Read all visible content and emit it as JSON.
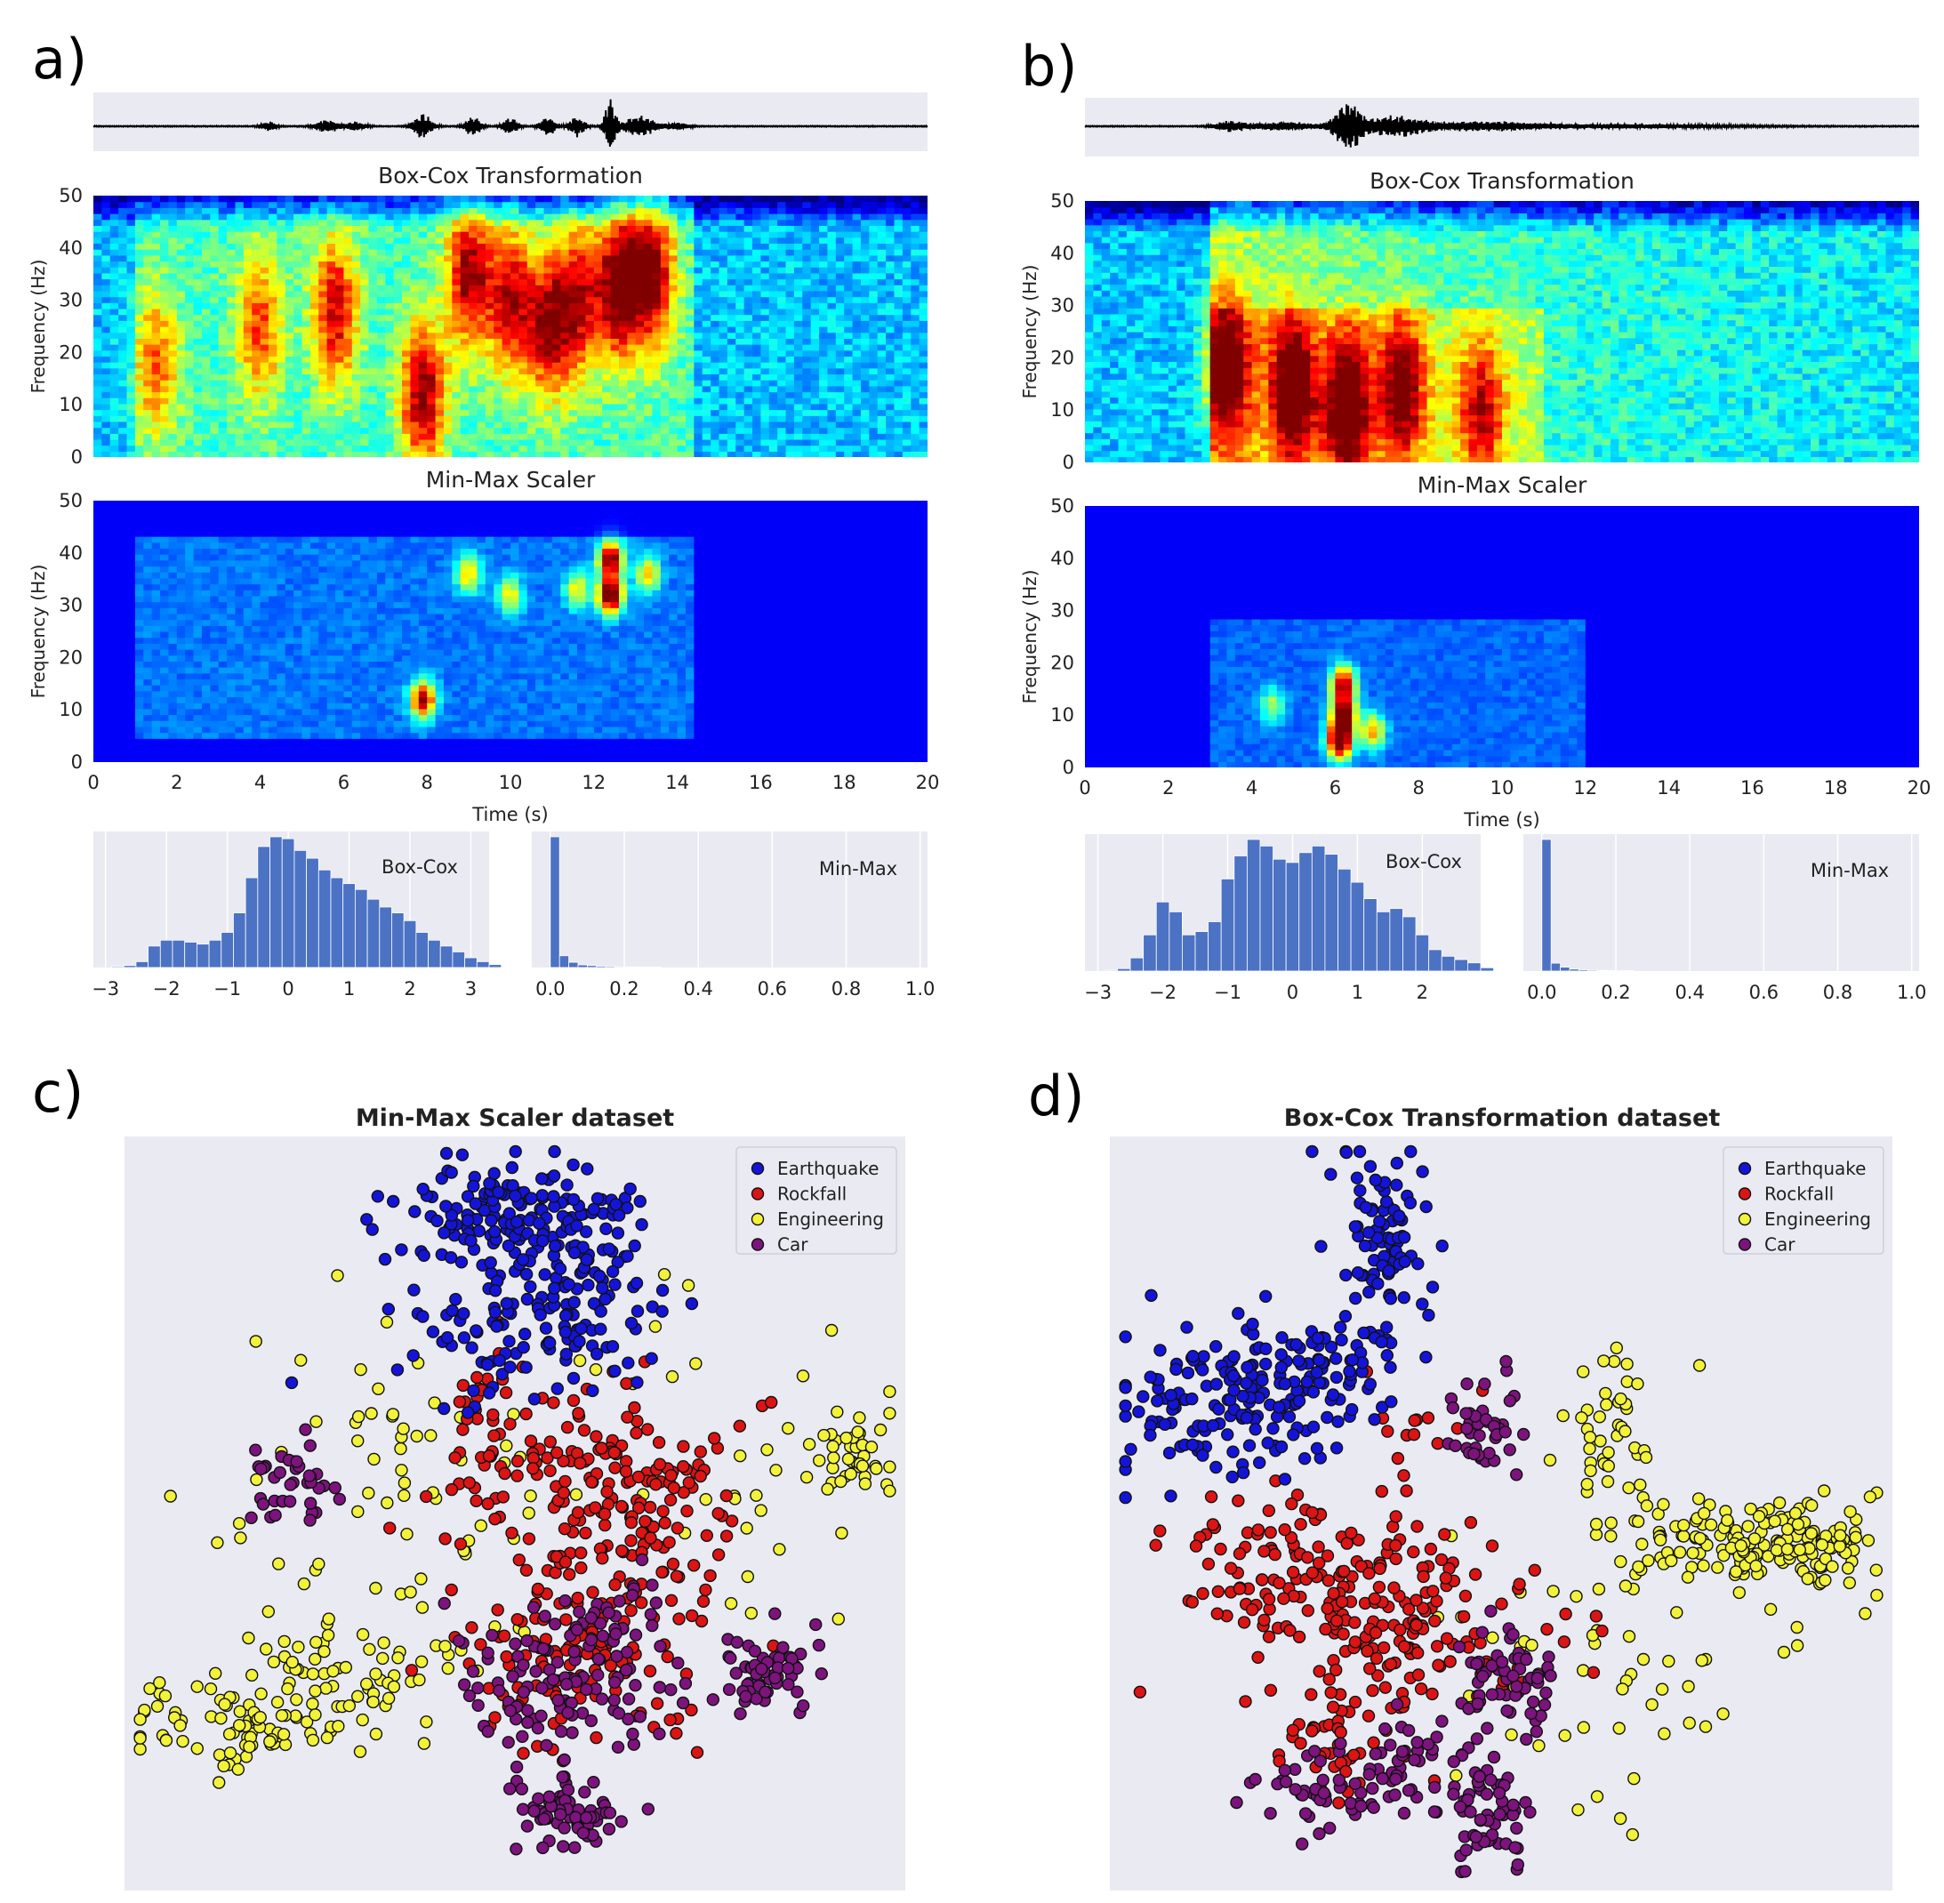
{
  "panels": [
    {
      "letter": "a)",
      "spec_titles": [
        "Box-Cox Transformation",
        "Min-Max Scaler"
      ],
      "ylabel": "Frequency (Hz)",
      "xlabel": "Time (s)",
      "hist_labels": [
        "Box-Cox",
        "Min-Max"
      ]
    },
    {
      "letter": "b)",
      "spec_titles": [
        "Box-Cox Transformation",
        "Min-Max Scaler"
      ],
      "ylabel": "Frequency (Hz)",
      "xlabel": "Time (s)",
      "hist_labels": [
        "Box-Cox",
        "Min-Max"
      ]
    },
    {
      "letter": "c)"
    },
    {
      "letter": "d)"
    }
  ],
  "colors": {
    "earthquake": "#1414d8",
    "rockfall": "#dc1414",
    "engineering": "#f2f23a",
    "car": "#7d137d",
    "hist_bar": "#4c72c4",
    "axes_bg": "#eaeaf2"
  },
  "chart_data": [
    {
      "panel": "a",
      "type": "heatmap",
      "title": "Box-Cox Transformation",
      "xlabel": "",
      "ylabel": "Frequency (Hz)",
      "xlim": [
        0,
        20
      ],
      "ylim": [
        0,
        50
      ],
      "y_ticks": [
        0,
        10,
        20,
        30,
        40,
        50
      ],
      "colormap": "jet",
      "events": [
        {
          "t": 1.5,
          "f": 18,
          "amp": 0.55
        },
        {
          "t": 4,
          "f": 25,
          "amp": 0.6
        },
        {
          "t": 5.8,
          "f": 28,
          "amp": 0.8
        },
        {
          "t": 7.9,
          "f": 12,
          "amp": 0.9
        },
        {
          "t": 9,
          "f": 35,
          "amp": 0.85
        },
        {
          "t": 10,
          "f": 30,
          "amp": 0.8
        },
        {
          "t": 10.9,
          "f": 25,
          "amp": 0.75
        },
        {
          "t": 11.6,
          "f": 30,
          "amp": 0.75
        },
        {
          "t": 12.6,
          "f": 33,
          "amp": 1.0
        },
        {
          "t": 13.4,
          "f": 35,
          "amp": 0.9
        }
      ]
    },
    {
      "panel": "a",
      "type": "heatmap",
      "title": "Min-Max Scaler",
      "xlabel": "Time (s)",
      "ylabel": "Frequency (Hz)",
      "xlim": [
        0,
        20
      ],
      "ylim": [
        0,
        50
      ],
      "x_ticks": [
        0,
        2,
        4,
        6,
        8,
        10,
        12,
        14,
        16,
        18,
        20
      ],
      "y_ticks": [
        0,
        10,
        20,
        30,
        40,
        50
      ],
      "colormap": "jet",
      "events": [
        {
          "t": 7.9,
          "f": 12,
          "amp": 0.85
        },
        {
          "t": 9,
          "f": 36,
          "amp": 0.5
        },
        {
          "t": 10,
          "f": 32,
          "amp": 0.45
        },
        {
          "t": 11.6,
          "f": 33,
          "amp": 0.45
        },
        {
          "t": 12.4,
          "f": 32,
          "amp": 1.0
        },
        {
          "t": 12.4,
          "f": 39,
          "amp": 0.9
        },
        {
          "t": 13.3,
          "f": 36,
          "amp": 0.5
        }
      ]
    },
    {
      "panel": "a",
      "type": "bar",
      "label": "Box-Cox",
      "xlim": [
        -3.2,
        3.3
      ],
      "x_ticks": [
        -3,
        -2,
        -1,
        0,
        1,
        2,
        3
      ],
      "bin_start": -2.9,
      "bin_width": 0.2,
      "values": [
        0.5,
        1,
        3,
        11,
        14,
        14,
        13,
        12,
        14,
        18,
        28,
        46,
        62,
        67,
        66,
        60,
        56,
        50,
        46,
        43,
        40,
        35,
        31,
        28,
        24,
        18,
        14,
        11,
        8,
        5,
        3,
        1.5
      ]
    },
    {
      "panel": "a",
      "type": "bar",
      "label": "Min-Max",
      "xlim": [
        -0.05,
        1.02
      ],
      "x_ticks": [
        0.0,
        0.2,
        0.4,
        0.6,
        0.8,
        1.0
      ],
      "bin_start": 0.0,
      "bin_width": 0.025,
      "values": [
        100,
        9,
        4,
        2,
        1.5,
        1,
        0.8,
        0.6,
        0.5,
        0.4,
        0.3,
        0.3
      ]
    },
    {
      "panel": "b",
      "type": "heatmap",
      "title": "Box-Cox Transformation",
      "xlabel": "",
      "ylabel": "Frequency (Hz)",
      "xlim": [
        0,
        20
      ],
      "ylim": [
        0,
        50
      ],
      "y_ticks": [
        0,
        10,
        20,
        30,
        40,
        50
      ],
      "colormap": "jet",
      "events": [
        {
          "t": 3.4,
          "f": 18,
          "amp": 0.85
        },
        {
          "t": 5,
          "f": 14,
          "amp": 0.95
        },
        {
          "t": 6.3,
          "f": 11,
          "amp": 1.0
        },
        {
          "t": 7.6,
          "f": 14,
          "amp": 0.85
        },
        {
          "t": 9.5,
          "f": 10,
          "amp": 0.65
        }
      ]
    },
    {
      "panel": "b",
      "type": "heatmap",
      "title": "Min-Max Scaler",
      "xlabel": "Time (s)",
      "ylabel": "Frequency (Hz)",
      "xlim": [
        0,
        20
      ],
      "ylim": [
        0,
        50
      ],
      "x_ticks": [
        0,
        2,
        4,
        6,
        8,
        10,
        12,
        14,
        16,
        18,
        20
      ],
      "y_ticks": [
        0,
        10,
        20,
        30,
        40,
        50
      ],
      "colormap": "jet",
      "events": [
        {
          "t": 6.1,
          "f": 5,
          "amp": 1.0
        },
        {
          "t": 6.2,
          "f": 10,
          "amp": 0.9
        },
        {
          "t": 6.2,
          "f": 16,
          "amp": 0.85
        },
        {
          "t": 6.9,
          "f": 7,
          "amp": 0.55
        },
        {
          "t": 4.5,
          "f": 12,
          "amp": 0.35
        }
      ]
    },
    {
      "panel": "b",
      "type": "bar",
      "label": "Box-Cox",
      "xlim": [
        -3.2,
        2.9
      ],
      "x_ticks": [
        -3,
        -2,
        -1,
        0,
        1,
        2
      ],
      "bin_start": -2.9,
      "bin_width": 0.2,
      "values": [
        0.5,
        1.5,
        8,
        22,
        42,
        36,
        22,
        24,
        30,
        56,
        70,
        80,
        76,
        68,
        66,
        72,
        76,
        71,
        62,
        54,
        44,
        36,
        38,
        33,
        22,
        13,
        9,
        7,
        5,
        2
      ]
    },
    {
      "panel": "b",
      "type": "bar",
      "label": "Min-Max",
      "xlim": [
        -0.05,
        1.02
      ],
      "x_ticks": [
        0.0,
        0.2,
        0.4,
        0.6,
        0.8,
        1.0
      ],
      "bin_start": 0.0,
      "bin_width": 0.025,
      "values": [
        100,
        6,
        3,
        1.5,
        1,
        0.7,
        0.5,
        0.4,
        0.3,
        0.3
      ]
    },
    {
      "panel": "c",
      "type": "scatter",
      "title": "Min-Max Scaler dataset",
      "xlabel": "",
      "ylabel": "",
      "xlim": [
        0,
        100
      ],
      "ylim": [
        0,
        100
      ],
      "legend": "top-right",
      "series": [
        {
          "name": "Earthquake",
          "color": "#1414d8",
          "clusters": [
            [
              45,
              89,
              5,
              3.5,
              90
            ],
            [
              56,
              89,
              5,
              4,
              80
            ],
            [
              52,
              75,
              9,
              4.5,
              110
            ],
            [
              59,
              83,
              3,
              6,
              35
            ]
          ]
        },
        {
          "name": "Rockfall",
          "color": "#dc1414",
          "clusters": [
            [
              61,
              55,
              9,
              6,
              150
            ],
            [
              58,
              32,
              8,
              7,
              120
            ],
            [
              46,
              64,
              2,
              4,
              25
            ],
            [
              66,
              43,
              7,
              6,
              45
            ]
          ]
        },
        {
          "name": "Engineering",
          "color": "#f2f23a",
          "clusters": [
            [
              15,
              22,
              8,
              3,
              85
            ],
            [
              27,
              29,
              6,
              3.5,
              55
            ],
            [
              93,
              57,
              2,
              2,
              30
            ],
            [
              35,
              53,
              10,
              12,
              70
            ],
            [
              88,
              51,
              8,
              7,
              25
            ],
            [
              75,
              65,
              13,
              11,
              20
            ]
          ]
        },
        {
          "name": "Car",
          "color": "#7d137d",
          "clusters": [
            [
              21,
              54,
              2.5,
              3,
              40
            ],
            [
              83,
              29,
              3.5,
              3,
              60
            ],
            [
              57,
              10,
              4,
              3,
              65
            ],
            [
              57,
              27,
              8,
              4.5,
              110
            ],
            [
              60,
              36,
              4,
              3,
              25
            ]
          ]
        }
      ]
    },
    {
      "panel": "d",
      "type": "scatter",
      "title": "Box-Cox Transformation dataset",
      "xlabel": "",
      "ylabel": "",
      "xlim": [
        0,
        100
      ],
      "ylim": [
        0,
        100
      ],
      "legend": "top-right",
      "series": [
        {
          "name": "Earthquake",
          "color": "#1414d8",
          "clusters": [
            [
              34,
              86,
              3,
              6,
              90
            ],
            [
              15,
              65,
              8,
              5,
              150
            ],
            [
              26,
              70,
              5,
              5,
              60
            ]
          ]
        },
        {
          "name": "Rockfall",
          "color": "#dc1414",
          "clusters": [
            [
              35,
              37,
              10,
              7,
              200
            ],
            [
              22,
              43,
              8,
              6,
              50
            ],
            [
              30,
              20,
              4,
              4,
              40
            ],
            [
              40,
              62,
              4,
              3,
              12
            ]
          ]
        },
        {
          "name": "Engineering",
          "color": "#f2f23a",
          "clusters": [
            [
              80,
              45,
              8,
              3,
              120
            ],
            [
              91,
              46,
              5,
              3,
              60
            ],
            [
              64,
              62,
              3,
              6,
              45
            ],
            [
              65,
              30,
              13,
              10,
              55
            ]
          ]
        },
        {
          "name": "Car",
          "color": "#7d137d",
          "clusters": [
            [
              48,
              62,
              2,
              3,
              40
            ],
            [
              51,
              28,
              3,
              3,
              60
            ],
            [
              48,
              10,
              3,
              4,
              60
            ],
            [
              28,
              12,
              6,
              2.5,
              50
            ],
            [
              38,
              19,
              3,
              3,
              35
            ]
          ]
        }
      ]
    }
  ]
}
